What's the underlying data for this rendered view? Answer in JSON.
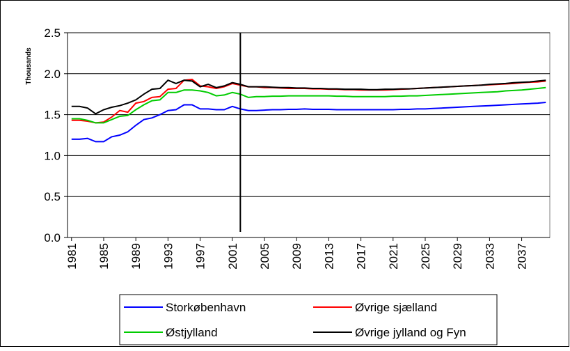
{
  "chart_data": {
    "type": "line",
    "y_label": "Thousands",
    "x": [
      1981,
      1982,
      1983,
      1984,
      1985,
      1986,
      1987,
      1988,
      1989,
      1990,
      1991,
      1992,
      1993,
      1994,
      1995,
      1996,
      1997,
      1998,
      1999,
      2000,
      2001,
      2002,
      2003,
      2004,
      2005,
      2006,
      2007,
      2008,
      2009,
      2010,
      2011,
      2012,
      2013,
      2014,
      2015,
      2016,
      2017,
      2018,
      2019,
      2020,
      2021,
      2022,
      2023,
      2024,
      2025,
      2026,
      2027,
      2028,
      2029,
      2030,
      2031,
      2032,
      2033,
      2034,
      2035,
      2036,
      2037,
      2038,
      2039,
      2040
    ],
    "xlim": [
      1980.5,
      2040.5
    ],
    "xticks": [
      1981,
      1985,
      1989,
      1993,
      1997,
      2001,
      2005,
      2009,
      2013,
      2017,
      2021,
      2025,
      2029,
      2033,
      2037
    ],
    "ylim": [
      0,
      2.5
    ],
    "yticks": [
      {
        "value": 0,
        "label": "0.0"
      },
      0.5,
      {
        "value": 1,
        "label": "1.0"
      },
      1.5,
      {
        "value": 2,
        "label": "2.0"
      },
      2.5
    ],
    "grid": true,
    "marker_x": 2002,
    "series": [
      {
        "name": "Storkøbenhavn",
        "color": "#0000ff",
        "values": [
          1.2,
          1.2,
          1.21,
          1.17,
          1.17,
          1.23,
          1.25,
          1.29,
          1.37,
          1.44,
          1.46,
          1.5,
          1.55,
          1.56,
          1.62,
          1.62,
          1.57,
          1.57,
          1.56,
          1.56,
          1.6,
          1.57,
          1.55,
          1.55,
          1.555,
          1.56,
          1.56,
          1.565,
          1.565,
          1.57,
          1.565,
          1.565,
          1.565,
          1.56,
          1.56,
          1.56,
          1.56,
          1.56,
          1.56,
          1.56,
          1.56,
          1.565,
          1.565,
          1.57,
          1.57,
          1.575,
          1.58,
          1.585,
          1.59,
          1.595,
          1.6,
          1.605,
          1.61,
          1.615,
          1.62,
          1.625,
          1.63,
          1.635,
          1.64,
          1.65
        ]
      },
      {
        "name": "Øvrige sjælland",
        "color": "#ff0000",
        "values": [
          1.43,
          1.43,
          1.42,
          1.4,
          1.41,
          1.47,
          1.55,
          1.53,
          1.64,
          1.66,
          1.71,
          1.72,
          1.81,
          1.82,
          1.92,
          1.93,
          1.85,
          1.84,
          1.82,
          1.84,
          1.88,
          1.86,
          1.84,
          1.84,
          1.83,
          1.83,
          1.825,
          1.82,
          1.82,
          1.82,
          1.815,
          1.815,
          1.81,
          1.81,
          1.805,
          1.805,
          1.8,
          1.8,
          1.8,
          1.8,
          1.805,
          1.81,
          1.815,
          1.82,
          1.825,
          1.83,
          1.835,
          1.84,
          1.845,
          1.85,
          1.855,
          1.86,
          1.865,
          1.87,
          1.875,
          1.88,
          1.89,
          1.895,
          1.9,
          1.91
        ]
      },
      {
        "name": "Østjylland",
        "color": "#00cc00",
        "values": [
          1.45,
          1.45,
          1.43,
          1.4,
          1.4,
          1.44,
          1.48,
          1.49,
          1.56,
          1.62,
          1.67,
          1.68,
          1.77,
          1.77,
          1.8,
          1.8,
          1.79,
          1.77,
          1.73,
          1.74,
          1.77,
          1.75,
          1.71,
          1.72,
          1.72,
          1.725,
          1.725,
          1.73,
          1.73,
          1.73,
          1.73,
          1.73,
          1.73,
          1.725,
          1.725,
          1.72,
          1.72,
          1.72,
          1.72,
          1.72,
          1.725,
          1.725,
          1.73,
          1.73,
          1.735,
          1.74,
          1.745,
          1.75,
          1.755,
          1.76,
          1.765,
          1.77,
          1.775,
          1.78,
          1.79,
          1.795,
          1.8,
          1.81,
          1.82,
          1.83
        ]
      },
      {
        "name": "Øvrige jylland og Fyn",
        "color": "#000000",
        "values": [
          1.6,
          1.6,
          1.58,
          1.51,
          1.56,
          1.59,
          1.61,
          1.64,
          1.68,
          1.75,
          1.81,
          1.82,
          1.92,
          1.88,
          1.92,
          1.91,
          1.84,
          1.87,
          1.83,
          1.85,
          1.89,
          1.87,
          1.84,
          1.84,
          1.84,
          1.835,
          1.83,
          1.83,
          1.825,
          1.825,
          1.82,
          1.82,
          1.815,
          1.815,
          1.81,
          1.81,
          1.81,
          1.805,
          1.805,
          1.81,
          1.81,
          1.815,
          1.815,
          1.82,
          1.825,
          1.83,
          1.835,
          1.84,
          1.845,
          1.85,
          1.855,
          1.86,
          1.87,
          1.875,
          1.88,
          1.89,
          1.895,
          1.9,
          1.91,
          1.92
        ]
      }
    ]
  }
}
